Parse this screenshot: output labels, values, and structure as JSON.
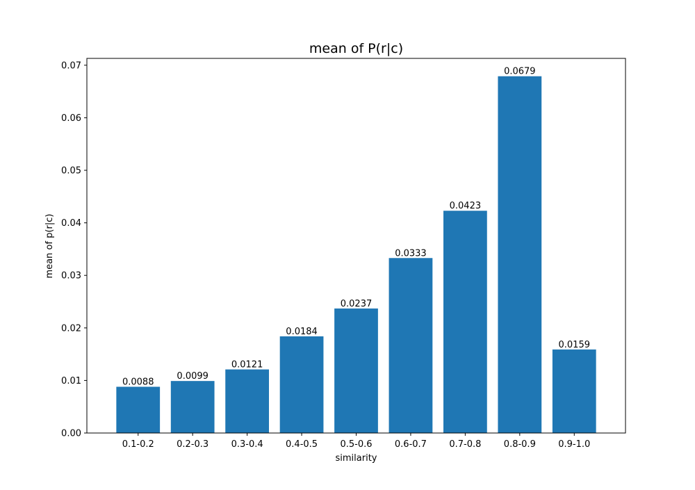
{
  "chart_data": {
    "type": "bar",
    "title": "mean of P(r|c)",
    "xlabel": "similarity",
    "ylabel": "mean of p(r|c)",
    "categories": [
      "0.1-0.2",
      "0.2-0.3",
      "0.3-0.4",
      "0.4-0.5",
      "0.5-0.6",
      "0.6-0.7",
      "0.7-0.8",
      "0.8-0.9",
      "0.9-1.0"
    ],
    "values": [
      0.0088,
      0.0099,
      0.0121,
      0.0184,
      0.0237,
      0.0333,
      0.0423,
      0.0679,
      0.0159
    ],
    "data_labels": [
      "0.0088",
      "0.0099",
      "0.0121",
      "0.0184",
      "0.0237",
      "0.0333",
      "0.0423",
      "0.0679",
      "0.0159"
    ],
    "ylim": [
      0,
      0.0713
    ],
    "yticks": [
      0,
      0.01,
      0.02,
      0.03,
      0.04,
      0.05,
      0.06,
      0.07
    ],
    "ytick_labels": [
      "0.00",
      "0.01",
      "0.02",
      "0.03",
      "0.04",
      "0.05",
      "0.06",
      "0.07"
    ],
    "bar_color": "#1f77b4",
    "grid": false
  }
}
